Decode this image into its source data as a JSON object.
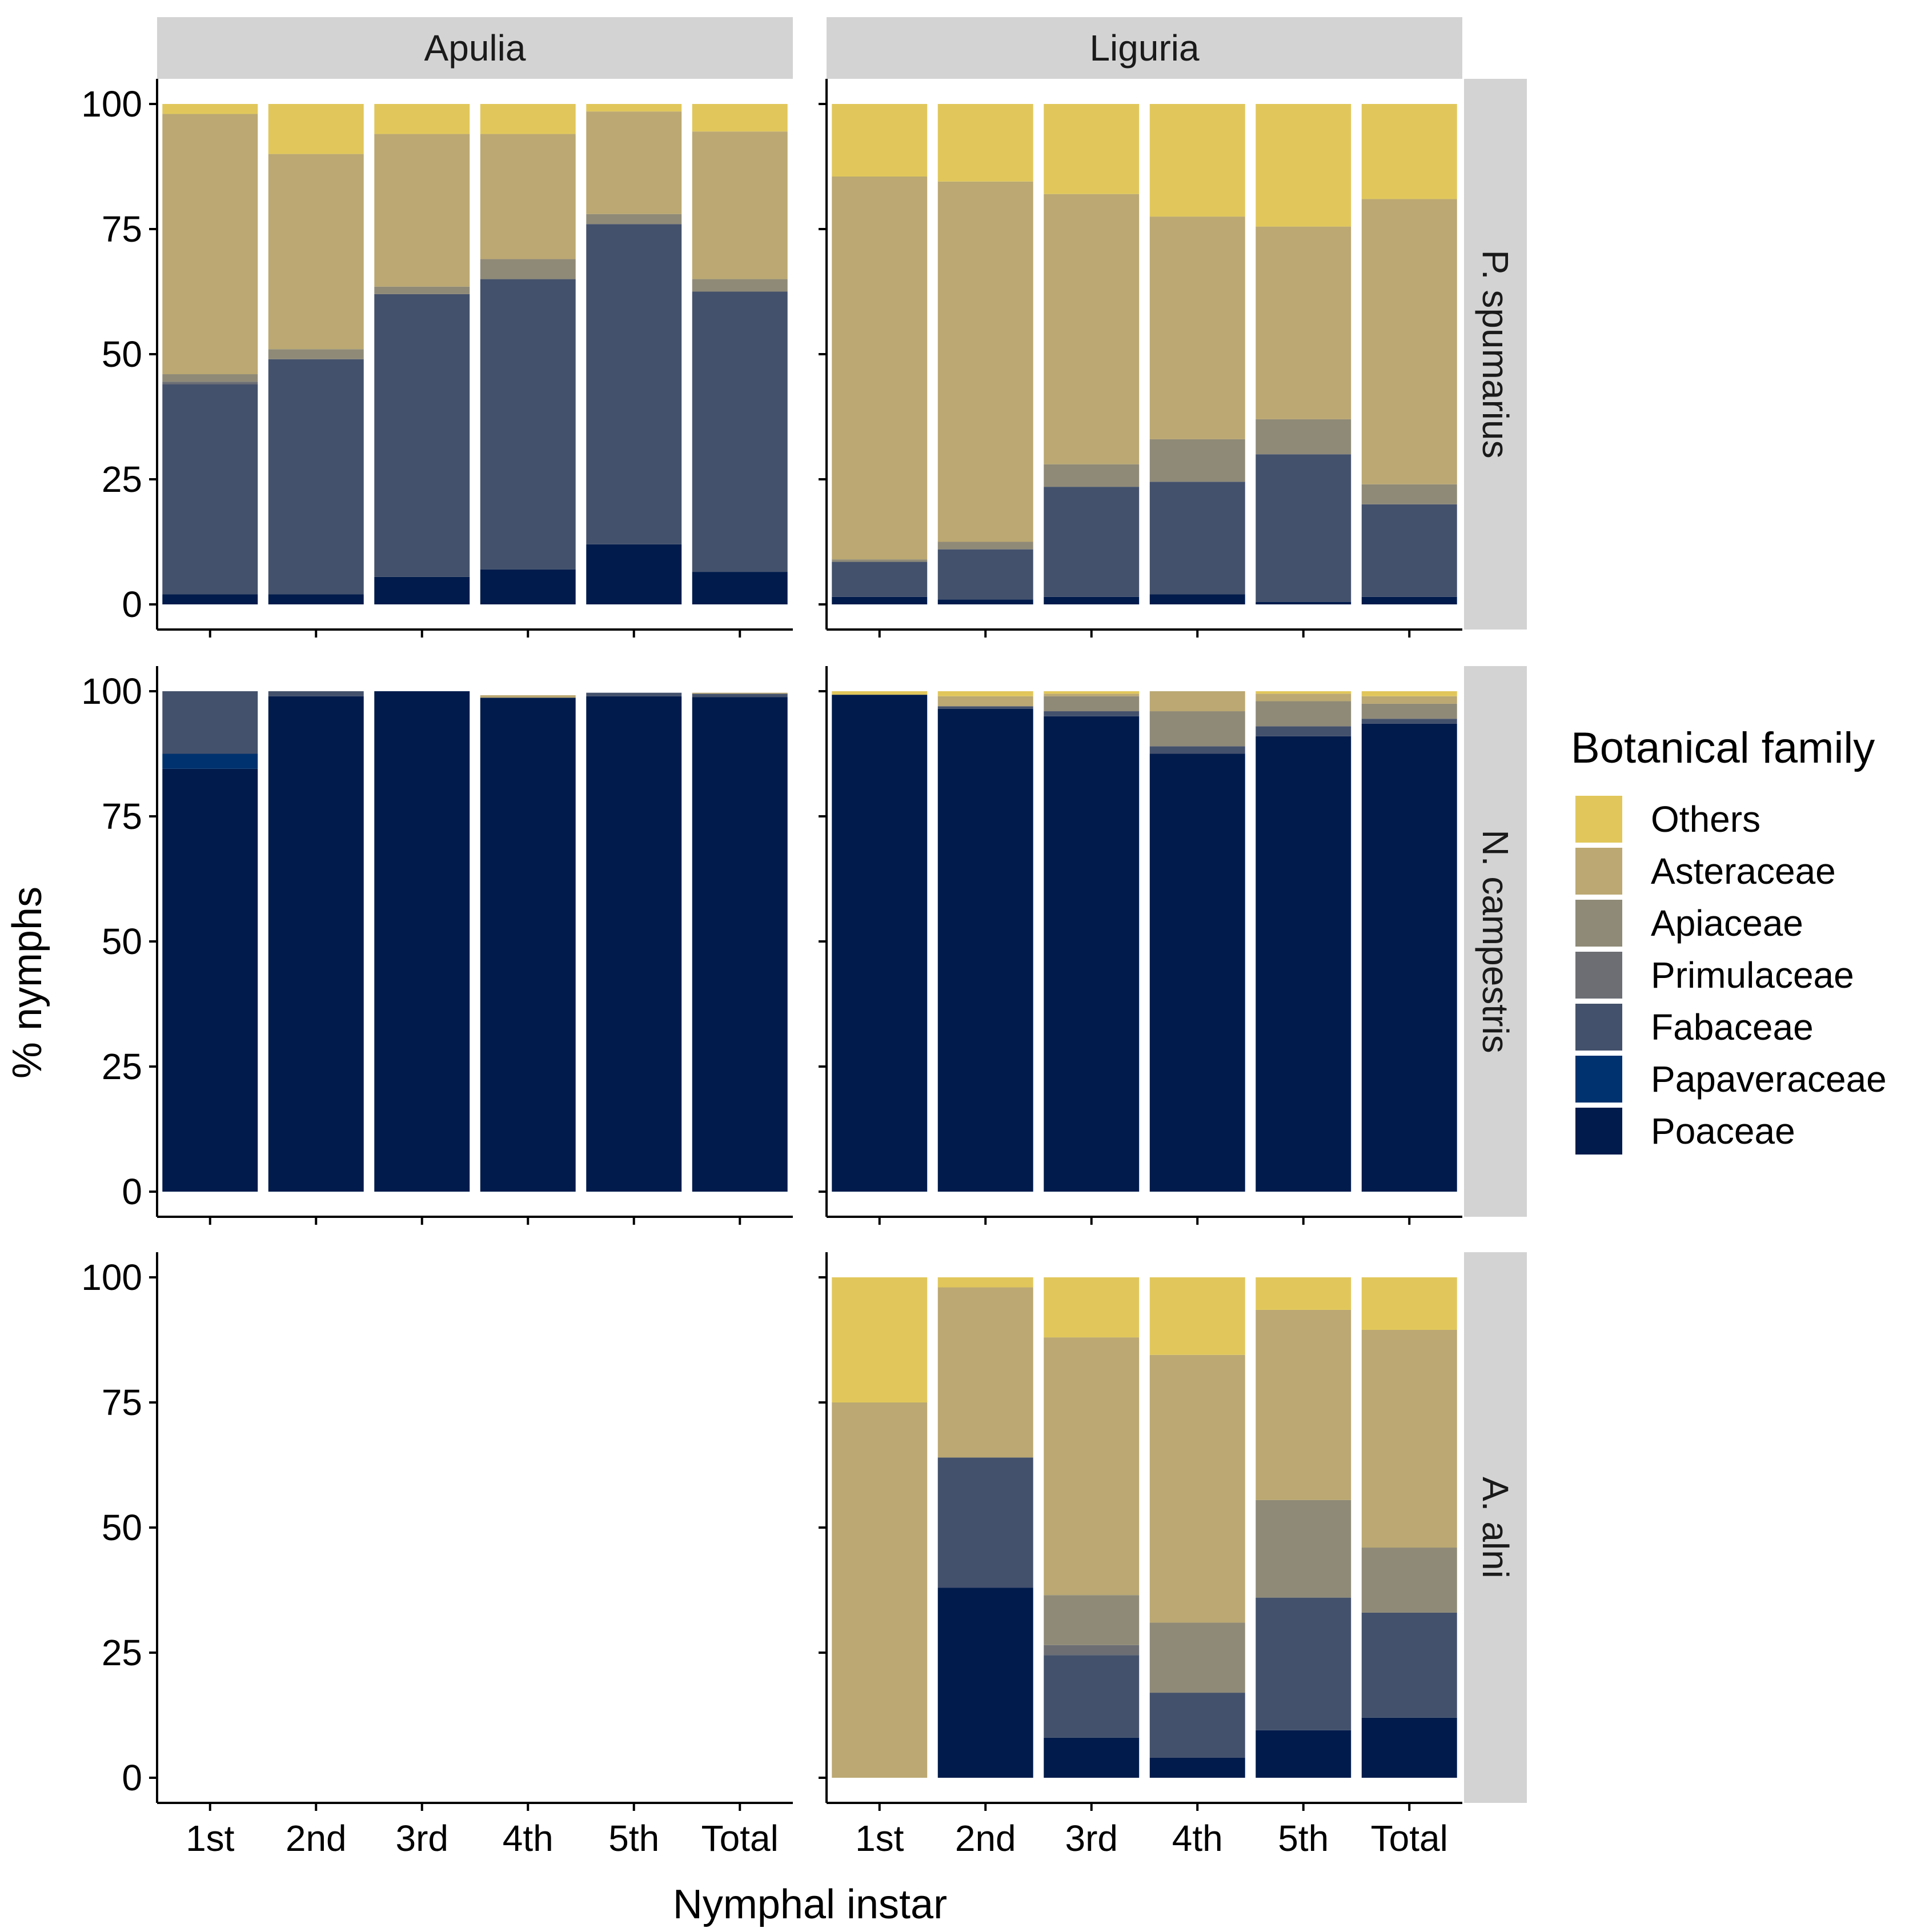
{
  "chart_data": {
    "type": "bar",
    "stacked": true,
    "title": "",
    "xlabel": "Nymphal instar",
    "ylabel": "% nymphs",
    "ylim": [
      0,
      100
    ],
    "yticks": [
      0,
      25,
      50,
      75,
      100
    ],
    "grid": false,
    "categories": [
      "1st",
      "2nd",
      "3rd",
      "4th",
      "5th",
      "Total"
    ],
    "columns": [
      "Apulia",
      "Liguria"
    ],
    "rows": [
      "P. spumarius",
      "N. campestris",
      "A. alni"
    ],
    "legend": {
      "title": "Botanical family",
      "position": "right",
      "entries": [
        "Others",
        "Asteraceae",
        "Apiaceae",
        "Primulaceae",
        "Fabaceae",
        "Papaveraceae",
        "Poaceae"
      ]
    },
    "colors": {
      "Others": "#E1C75B",
      "Asteraceae": "#BBA872",
      "Apiaceae": "#8F8A77",
      "Primulaceae": "#6C6E74",
      "Fabaceae": "#44516C",
      "Papaveraceae": "#00326F",
      "Poaceae": "#001B4C"
    },
    "series_order_bottom_to_top": [
      "Poaceae",
      "Papaveraceae",
      "Fabaceae",
      "Primulaceae",
      "Apiaceae",
      "Asteraceae",
      "Others"
    ],
    "panels": [
      {
        "row": "P. spumarius",
        "column": "Apulia",
        "series": [
          {
            "name": "Poaceae",
            "values": [
              2,
              2,
              5.5,
              7,
              12,
              6.5
            ]
          },
          {
            "name": "Papaveraceae",
            "values": [
              0,
              0,
              0,
              0,
              0,
              0
            ]
          },
          {
            "name": "Fabaceae",
            "values": [
              42,
              47,
              56.5,
              58,
              64,
              56
            ]
          },
          {
            "name": "Primulaceae",
            "values": [
              0.5,
              0,
              0,
              0,
              0,
              0
            ]
          },
          {
            "name": "Apiaceae",
            "values": [
              1.5,
              2,
              1.5,
              4,
              2,
              2.5
            ]
          },
          {
            "name": "Asteraceae",
            "values": [
              52,
              39,
              30.5,
              25,
              20.5,
              29.5
            ]
          },
          {
            "name": "Others",
            "values": [
              2,
              10,
              6,
              6,
              1.5,
              5.5
            ]
          }
        ]
      },
      {
        "row": "P. spumarius",
        "column": "Liguria",
        "series": [
          {
            "name": "Poaceae",
            "values": [
              1.5,
              1,
              1.5,
              2,
              0.5,
              1.5
            ]
          },
          {
            "name": "Papaveraceae",
            "values": [
              0,
              0,
              0,
              0,
              0,
              0
            ]
          },
          {
            "name": "Fabaceae",
            "values": [
              7,
              10,
              22,
              22.5,
              29.5,
              18.5
            ]
          },
          {
            "name": "Primulaceae",
            "values": [
              0,
              0,
              0,
              0,
              0,
              0
            ]
          },
          {
            "name": "Apiaceae",
            "values": [
              0.5,
              1.5,
              4.5,
              8.5,
              7,
              4
            ]
          },
          {
            "name": "Asteraceae",
            "values": [
              76.5,
              72,
              54,
              44.5,
              38.5,
              57
            ]
          },
          {
            "name": "Others",
            "values": [
              14.5,
              15.5,
              18,
              22.5,
              24.5,
              19
            ]
          }
        ]
      },
      {
        "row": "N. campestris",
        "column": "Apulia",
        "series": [
          {
            "name": "Poaceae",
            "values": [
              84.5,
              99,
              100,
              98.7,
              99,
              98.8
            ]
          },
          {
            "name": "Papaveraceae",
            "values": [
              3,
              0,
              0,
              0,
              0,
              0
            ]
          },
          {
            "name": "Fabaceae",
            "values": [
              12.5,
              1,
              0,
              0,
              0.7,
              0.7
            ]
          },
          {
            "name": "Primulaceae",
            "values": [
              0,
              0,
              0,
              0,
              0,
              0
            ]
          },
          {
            "name": "Apiaceae",
            "values": [
              0,
              0,
              0,
              0,
              0,
              0
            ]
          },
          {
            "name": "Asteraceae",
            "values": [
              0,
              0,
              0,
              0.5,
              0,
              0.2
            ]
          },
          {
            "name": "Others",
            "values": [
              0,
              0,
              0,
              0,
              0,
              0
            ]
          }
        ]
      },
      {
        "row": "N. campestris",
        "column": "Liguria",
        "series": [
          {
            "name": "Poaceae",
            "values": [
              99.3,
              96.5,
              95,
              87.5,
              91,
              93.5
            ]
          },
          {
            "name": "Papaveraceae",
            "values": [
              0,
              0,
              0,
              0,
              0,
              0
            ]
          },
          {
            "name": "Fabaceae",
            "values": [
              0,
              0.5,
              1,
              1.5,
              2,
              1
            ]
          },
          {
            "name": "Primulaceae",
            "values": [
              0,
              0,
              0,
              0,
              0,
              0
            ]
          },
          {
            "name": "Apiaceae",
            "values": [
              0,
              0,
              3,
              7,
              5,
              3
            ]
          },
          {
            "name": "Asteraceae",
            "values": [
              0,
              2,
              0.5,
              4,
              1.5,
              1.5
            ]
          },
          {
            "name": "Others",
            "values": [
              0.7,
              1,
              0.5,
              0,
              0.5,
              1
            ]
          }
        ]
      },
      {
        "row": "A. alni",
        "column": "Apulia",
        "series": []
      },
      {
        "row": "A. alni",
        "column": "Liguria",
        "series": [
          {
            "name": "Poaceae",
            "values": [
              0,
              38,
              8,
              4,
              9.5,
              12
            ]
          },
          {
            "name": "Papaveraceae",
            "values": [
              0,
              0,
              0,
              0,
              0,
              0
            ]
          },
          {
            "name": "Fabaceae",
            "values": [
              0,
              26,
              16.5,
              13,
              26.5,
              21
            ]
          },
          {
            "name": "Primulaceae",
            "values": [
              0,
              0,
              2,
              0,
              0,
              0
            ]
          },
          {
            "name": "Apiaceae",
            "values": [
              0,
              0,
              10,
              14,
              19.5,
              13
            ]
          },
          {
            "name": "Asteraceae",
            "values": [
              75,
              34,
              51.5,
              53.5,
              38,
              43.5
            ]
          },
          {
            "name": "Others",
            "values": [
              25,
              2,
              12,
              15.5,
              6.5,
              10.5
            ]
          }
        ]
      }
    ]
  }
}
